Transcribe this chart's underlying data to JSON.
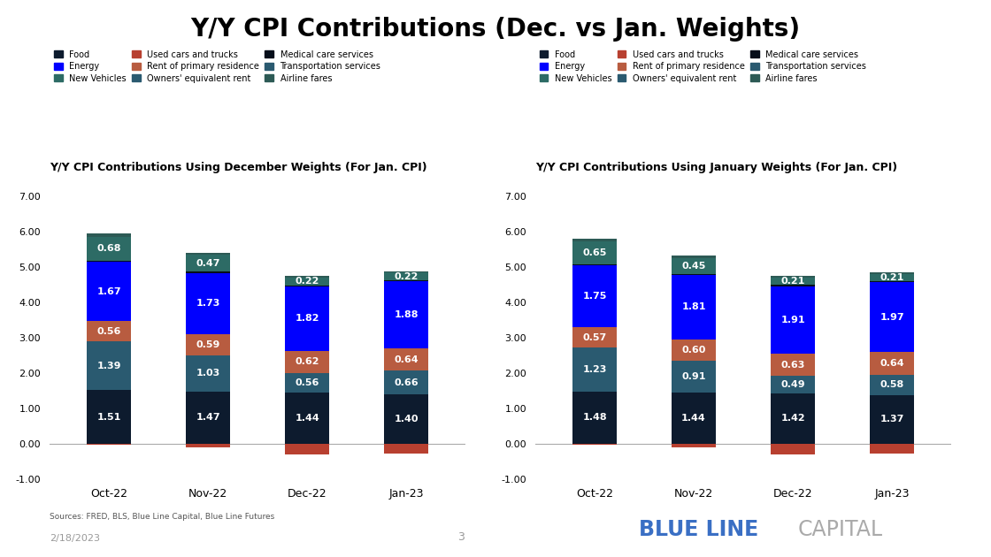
{
  "title": "Y/Y CPI Contributions (Dec. vs Jan. Weights)",
  "left_subtitle": "Y/Y CPI Contributions Using December Weights (For Jan. CPI)",
  "right_subtitle": "Y/Y CPI Contributions Using January Weights (For Jan. CPI)",
  "categories": [
    "Oct-22",
    "Nov-22",
    "Dec-22",
    "Jan-23"
  ],
  "colors_map": {
    "Food": "#0d1b2e",
    "Transportation_services": "#2a5a70",
    "Owners_equivalent_rent": "#2a5a70",
    "Rent_primary_residence": "#b85c40",
    "Energy": "#0000ff",
    "Medical_care_services": "#060e1a",
    "New_Vehicles": "#2d6b65",
    "Airline_fares": "#2d5a55",
    "Used_cars_trucks": "#b84030"
  },
  "left_data": {
    "Food": [
      1.51,
      1.47,
      1.44,
      1.4
    ],
    "Owners_equivalent_rent": [
      1.39,
      1.03,
      0.56,
      0.66
    ],
    "Rent_primary_residence": [
      0.56,
      0.59,
      0.62,
      0.64
    ],
    "Energy": [
      1.67,
      1.73,
      1.82,
      1.88
    ],
    "Medical_care_services": [
      0.04,
      0.04,
      0.03,
      0.03
    ],
    "New_Vehicles": [
      0.68,
      0.47,
      0.22,
      0.22
    ],
    "Airline_fares": [
      0.08,
      0.06,
      0.04,
      0.04
    ],
    "Used_cars_trucks": [
      -0.04,
      -0.1,
      -0.3,
      -0.28
    ]
  },
  "right_data": {
    "Food": [
      1.48,
      1.44,
      1.42,
      1.37
    ],
    "Owners_equivalent_rent": [
      1.23,
      0.91,
      0.49,
      0.58
    ],
    "Rent_primary_residence": [
      0.57,
      0.6,
      0.63,
      0.64
    ],
    "Energy": [
      1.75,
      1.81,
      1.91,
      1.97
    ],
    "Medical_care_services": [
      0.04,
      0.04,
      0.03,
      0.03
    ],
    "New_Vehicles": [
      0.65,
      0.45,
      0.21,
      0.21
    ],
    "Airline_fares": [
      0.08,
      0.06,
      0.04,
      0.04
    ],
    "Used_cars_trucks": [
      -0.04,
      -0.1,
      -0.3,
      -0.28
    ]
  },
  "left_labels": {
    "Food": [
      "1.51",
      "1.47",
      "1.44",
      "1.40"
    ],
    "Owners_equivalent_rent": [
      "1.39",
      "1.03",
      "0.56",
      "0.66"
    ],
    "Rent_primary_residence": [
      "0.56",
      "0.59",
      "0.62",
      "0.64"
    ],
    "Energy": [
      "1.67",
      "1.73",
      "1.82",
      "1.88"
    ],
    "New_Vehicles": [
      "0.68",
      "0.47",
      "0.22",
      "0.22"
    ]
  },
  "right_labels": {
    "Food": [
      "1.48",
      "1.44",
      "1.42",
      "1.37"
    ],
    "Owners_equivalent_rent": [
      "1.23",
      "0.91",
      "0.49",
      "0.58"
    ],
    "Rent_primary_residence": [
      "0.57",
      "0.60",
      "0.63",
      "0.64"
    ],
    "Energy": [
      "1.75",
      "1.81",
      "1.91",
      "1.97"
    ],
    "New_Vehicles": [
      "0.65",
      "0.45",
      "0.21",
      "0.21"
    ]
  },
  "legend_items": [
    [
      "Food",
      "#0d1b2e"
    ],
    [
      "Energy",
      "#0000ff"
    ],
    [
      "New Vehicles",
      "#2d6b65"
    ],
    [
      "Used cars and trucks",
      "#b84030"
    ],
    [
      "Rent of primary residence",
      "#b85c40"
    ],
    [
      "Owners' equivalent rent",
      "#2a5a70"
    ],
    [
      "Medical care services",
      "#060e1a"
    ],
    [
      "Transportation services",
      "#2a5a70"
    ],
    [
      "Airline fares",
      "#2d5a55"
    ]
  ],
  "ylim": [
    -1.0,
    7.5
  ],
  "yticks": [
    -1.0,
    0.0,
    1.0,
    2.0,
    3.0,
    4.0,
    5.0,
    6.0,
    7.0
  ],
  "source_text": "Sources: FRED, BLS, Blue Line Capital, Blue Line Futures",
  "date_text": "2/18/2023",
  "page_number": "3"
}
